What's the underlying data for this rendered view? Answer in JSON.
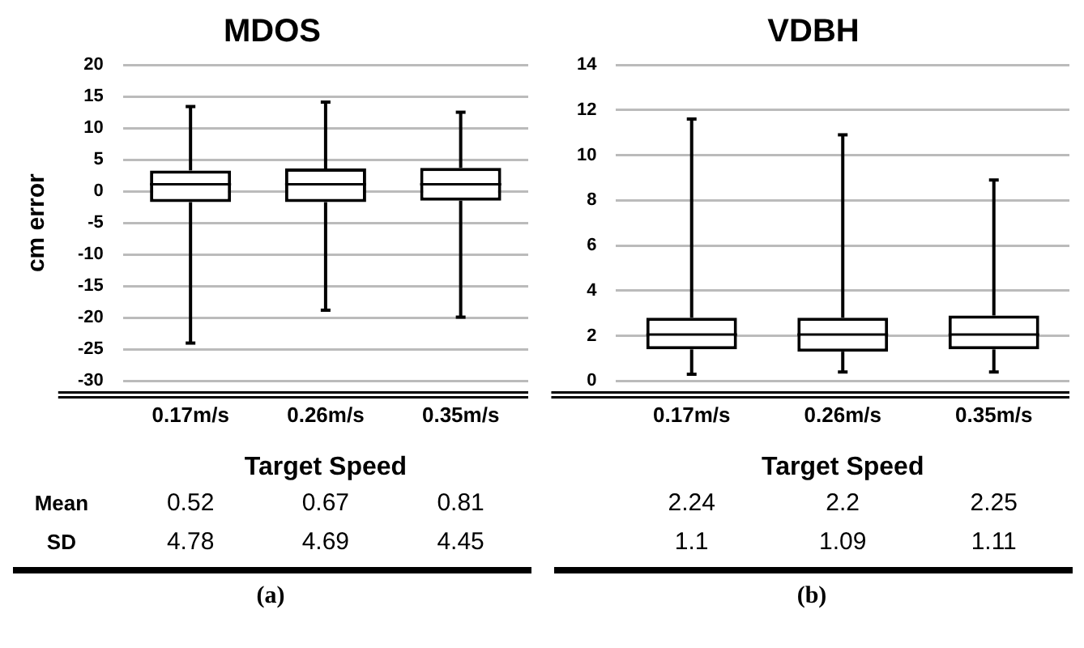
{
  "chart_data": [
    {
      "type": "box",
      "title": "MDOS",
      "xlabel": "Target Speed",
      "ylabel": "cm error",
      "categories": [
        "0.17m/s",
        "0.26m/s",
        "0.35m/s"
      ],
      "boxes": [
        {
          "low": -24,
          "q1": -1.7,
          "median": 1.1,
          "q3": 3.3,
          "high": 13.4
        },
        {
          "low": -18.8,
          "q1": -1.7,
          "median": 1.1,
          "q3": 3.6,
          "high": 14.1
        },
        {
          "low": -19.9,
          "q1": -1.5,
          "median": 1.1,
          "q3": 3.7,
          "high": 12.5
        }
      ],
      "ylim": [
        -30,
        20
      ],
      "yticks": [
        -30,
        -25,
        -20,
        -15,
        -10,
        -5,
        0,
        5,
        10,
        15,
        20
      ],
      "grid": "y",
      "annotations": [
        "Mean",
        "0.52",
        "0.67",
        "0.81",
        "SD",
        "4.78",
        "4.69",
        "4.45",
        "(a)"
      ]
    },
    {
      "type": "box",
      "title": "VDBH",
      "xlabel": "Target Speed",
      "categories": [
        "0.17m/s",
        "0.26m/s",
        "0.35m/s"
      ],
      "boxes": [
        {
          "low": 0.3,
          "q1": 1.4,
          "median": 2.06,
          "q3": 2.8,
          "high": 11.6
        },
        {
          "low": 0.4,
          "q1": 1.3,
          "median": 2.06,
          "q3": 2.8,
          "high": 10.9
        },
        {
          "low": 0.4,
          "q1": 1.4,
          "median": 2.06,
          "q3": 2.9,
          "high": 8.9
        }
      ],
      "ylim": [
        0,
        14
      ],
      "yticks": [
        0,
        2,
        4,
        6,
        8,
        10,
        12,
        14
      ],
      "grid": "y",
      "annotations": [
        "2.24",
        "2.2",
        "2.25",
        "1.1",
        "1.09",
        "1.11",
        "(b)"
      ]
    }
  ]
}
